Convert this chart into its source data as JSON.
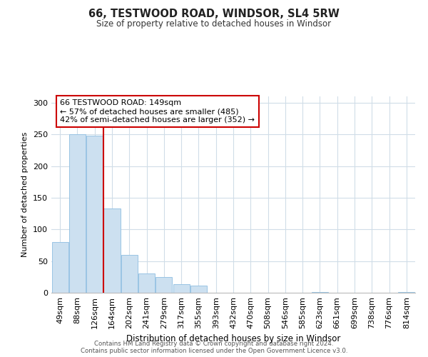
{
  "title": "66, TESTWOOD ROAD, WINDSOR, SL4 5RW",
  "subtitle": "Size of property relative to detached houses in Windsor",
  "xlabel": "Distribution of detached houses by size in Windsor",
  "ylabel": "Number of detached properties",
  "categories": [
    "49sqm",
    "88sqm",
    "126sqm",
    "164sqm",
    "202sqm",
    "241sqm",
    "279sqm",
    "317sqm",
    "355sqm",
    "393sqm",
    "432sqm",
    "470sqm",
    "508sqm",
    "546sqm",
    "585sqm",
    "623sqm",
    "661sqm",
    "699sqm",
    "738sqm",
    "776sqm",
    "814sqm"
  ],
  "values": [
    80,
    250,
    248,
    133,
    60,
    30,
    25,
    14,
    11,
    0,
    0,
    0,
    0,
    0,
    0,
    1,
    0,
    0,
    0,
    0,
    1
  ],
  "bar_color": "#cce0f0",
  "bar_edge_color": "#99c4e4",
  "property_line_x": 2.5,
  "property_line_color": "#cc0000",
  "annotation_line1": "66 TESTWOOD ROAD: 149sqm",
  "annotation_line2": "← 57% of detached houses are smaller (485)",
  "annotation_line3": "42% of semi-detached houses are larger (352) →",
  "annotation_box_edge_color": "#cc0000",
  "ylim": [
    0,
    310
  ],
  "yticks": [
    0,
    50,
    100,
    150,
    200,
    250,
    300
  ],
  "footnote1": "Contains HM Land Registry data © Crown copyright and database right 2024.",
  "footnote2": "Contains public sector information licensed under the Open Government Licence v3.0.",
  "background_color": "#ffffff",
  "grid_color": "#d0dde8"
}
